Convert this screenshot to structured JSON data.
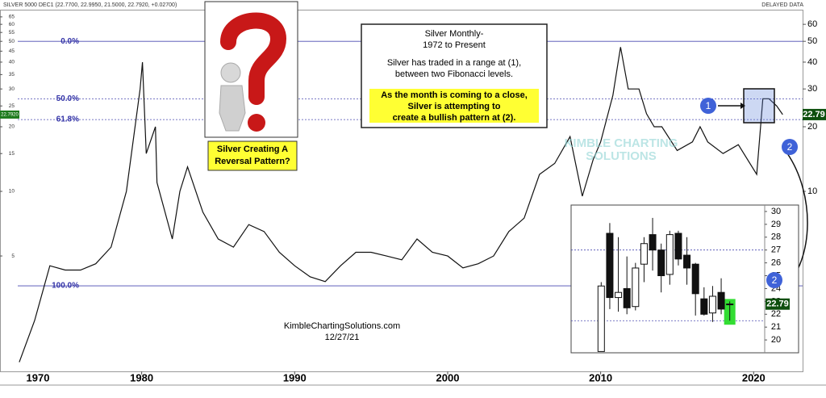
{
  "chart_data": [
    {
      "type": "line",
      "header": "SILVER 5000 DEC1 (22.7700, 22.9950, 21.5000, 22.7920, +0.02700)",
      "data_status": "DELAYED DATA",
      "log_y": true,
      "color": "#111111",
      "x": [
        1972,
        1973,
        1974,
        1975,
        1976,
        1977,
        1978,
        1979,
        1979.9,
        1980.05,
        1980.3,
        1980.9,
        1981,
        1982,
        1982.5,
        1983,
        1984,
        1985,
        1986,
        1987,
        1988,
        1989,
        1990,
        1991,
        1992,
        1993,
        1994,
        1995,
        1996,
        1997,
        1998,
        1999,
        2000,
        2001,
        2002,
        2003,
        2004,
        2005,
        2006,
        2007,
        2008,
        2008.8,
        2009.5,
        2010,
        2010.8,
        2011.3,
        2011.8,
        2012.5,
        2013,
        2013.5,
        2014,
        2015,
        2016,
        2016.5,
        2017,
        2018,
        2019,
        2020.2,
        2020.6,
        2021,
        2021.5,
        2021.9
      ],
      "values": [
        1.6,
        2.5,
        4.5,
        4.3,
        4.3,
        4.6,
        5.5,
        10,
        30,
        40,
        15,
        20,
        11,
        6,
        10,
        13,
        8,
        6,
        5.5,
        7,
        6.5,
        5.2,
        4.5,
        4,
        3.8,
        4.5,
        5.2,
        5.2,
        5,
        4.8,
        6,
        5.2,
        5,
        4.4,
        4.6,
        5,
        6.5,
        7.5,
        12,
        13.5,
        18,
        9.5,
        14,
        17,
        28,
        47,
        30,
        30,
        23,
        20,
        20,
        15.5,
        17,
        20,
        17,
        15,
        16.5,
        12,
        27,
        27,
        25,
        22.79
      ],
      "xlim": [
        1971.9,
        2023.2
      ],
      "xticks": [
        1970,
        1980,
        1990,
        2000,
        2010,
        2020
      ],
      "ylim": [
        1.45,
        69
      ],
      "yticks": [
        10,
        20,
        30,
        40,
        50,
        60
      ],
      "left_yticks": [
        5,
        10,
        15,
        20,
        25,
        30,
        35,
        40,
        45,
        50,
        55,
        60,
        65
      ],
      "last_price": {
        "value": 22.792,
        "label": "22.7920"
      },
      "last_price_short": {
        "value": 22.79,
        "label": "22.79"
      },
      "fib_levels": [
        {
          "label": "0.0%",
          "value": 50,
          "dashed": false
        },
        {
          "label": "50.0%",
          "value": 27,
          "dashed": true
        },
        {
          "label": "61.8%",
          "value": 21.6,
          "dashed": true
        },
        {
          "label": "100.0%",
          "value": 3.63,
          "dashed": false
        }
      ],
      "callout": [
        "Silver Creating A",
        "Reversal Pattern?"
      ],
      "text_box": {
        "title": [
          "Silver Monthly-",
          "1972 to Present"
        ],
        "body": [
          "Silver has traded in a range at (1),",
          "between two Fibonacci levels."
        ],
        "highlight": [
          "As the month is coming to a close,",
          "Silver is attempting to",
          "create a bullish pattern at (2)."
        ]
      },
      "watermark": [
        "KIMBLE CHARTING",
        "SOLUTIONS"
      ],
      "footer": [
        "KimbleChartingSolutions.com",
        "12/27/21"
      ],
      "markers": [
        "1",
        "2",
        "2"
      ]
    },
    {
      "type": "candlestick",
      "open": [
        19.1,
        28.3,
        23.3,
        24,
        22.6,
        25.9,
        28.2,
        27,
        25.1,
        28.3,
        26.6,
        25.9,
        23.2,
        22.1,
        23.7,
        22.8
      ],
      "high": [
        24.5,
        29.1,
        28,
        26.5,
        26,
        28,
        29.5,
        27.5,
        28.5,
        28.5,
        28,
        26,
        24.1,
        24.2,
        24.8,
        23
      ],
      "low": [
        19.1,
        22.4,
        22.2,
        22,
        22.3,
        24.5,
        25.4,
        23.7,
        24.3,
        25.8,
        24.3,
        21.9,
        21.9,
        21.4,
        22,
        21.5
      ],
      "close": [
        24.2,
        23.3,
        23.7,
        22.5,
        25.6,
        27.5,
        27,
        25,
        28.2,
        26.3,
        25.6,
        23.6,
        22,
        23.4,
        22.4,
        22.79
      ],
      "ylim": [
        19,
        30.5
      ],
      "yticks": [
        20,
        21,
        22,
        23,
        24,
        25,
        26,
        27,
        28,
        29,
        30
      ],
      "reference_lines": [
        27,
        21.5
      ],
      "last_price": {
        "value": 22.79,
        "label": "22.79"
      }
    }
  ]
}
